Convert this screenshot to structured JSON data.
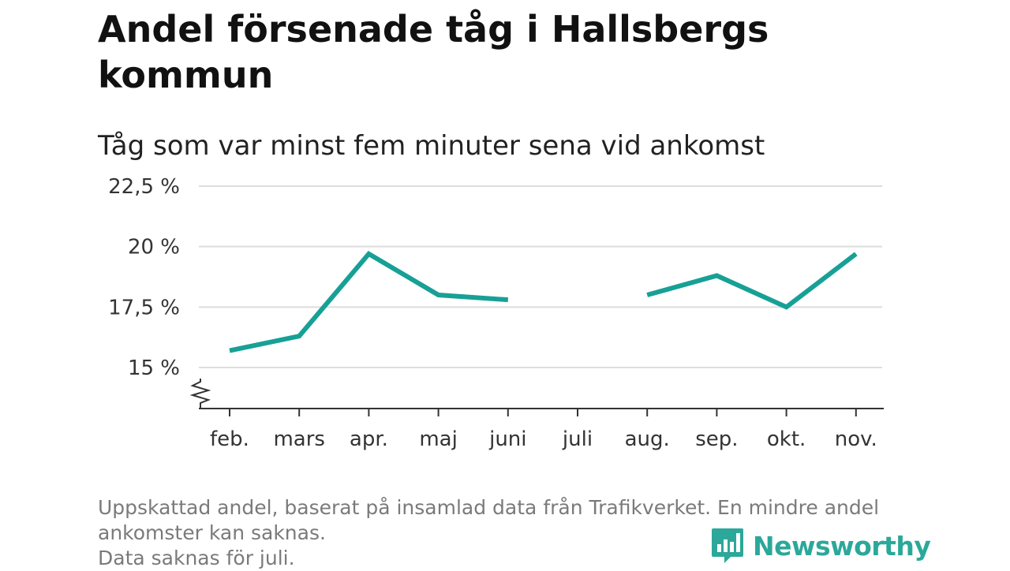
{
  "title": "Andel försenade tåg i Hallsbergs kommun",
  "subtitle": "Tåg som var minst fem minuter sena vid ankomst",
  "footnote": {
    "line1": "Uppskattad andel, baserat på insamlad data från Trafikverket. En mindre andel ankomster kan saknas.",
    "line2": "Data saknas för juli."
  },
  "logo": {
    "text": "Newsworthy",
    "icon": "newsworthy-bar-chart-icon",
    "color": "#2ba89a"
  },
  "colors": {
    "line": "#17a096",
    "grid": "#dddddd",
    "axis": "#333333"
  },
  "chart_data": {
    "type": "line",
    "categories": [
      "feb.",
      "mars",
      "apr.",
      "maj",
      "juni",
      "juli",
      "aug.",
      "sep.",
      "okt.",
      "nov."
    ],
    "series": [
      {
        "values": [
          15.7,
          16.3,
          19.7,
          18.0,
          17.8,
          null,
          18.0,
          18.8,
          17.5,
          19.7
        ]
      }
    ],
    "y_ticks": [
      15,
      17.5,
      20,
      22.5
    ],
    "y_tick_labels": [
      "15 %",
      "17,5 %",
      "20 %",
      "22,5 %"
    ],
    "ylim": [
      15,
      22.5
    ],
    "grid": true,
    "axis_break": true
  }
}
